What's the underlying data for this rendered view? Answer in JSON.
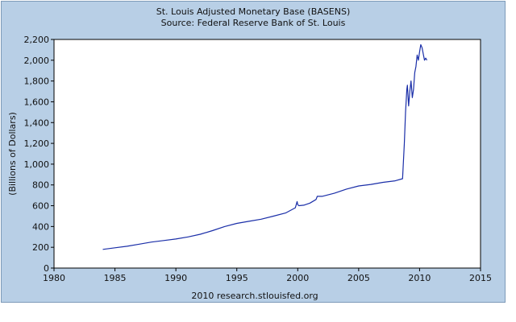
{
  "chart_data": {
    "type": "line",
    "title": "St. Louis Adjusted Monetary Base (BASENS)",
    "subtitle": "Source: Federal Reserve Bank of St. Louis",
    "xlabel": "",
    "ylabel": "(Billions of Dollars)",
    "footer": "2010 research.stlouisfed.org",
    "xlim": [
      1980,
      2015
    ],
    "ylim": [
      0,
      2200
    ],
    "x_ticks": [
      "1980",
      "1985",
      "1990",
      "1995",
      "2000",
      "2005",
      "2010",
      "2015"
    ],
    "y_ticks": [
      "0",
      "200",
      "400",
      "600",
      "800",
      "1,000",
      "1,200",
      "1,400",
      "1,600",
      "1,800",
      "2,000",
      "2,200"
    ],
    "grid": false,
    "legend": "none",
    "series": [
      {
        "color": "#1a2ea8",
        "x": [
          1984.0,
          1985.0,
          1986.0,
          1987.0,
          1988.0,
          1989.0,
          1990.0,
          1991.0,
          1992.0,
          1993.0,
          1994.0,
          1995.0,
          1996.0,
          1997.0,
          1998.0,
          1999.0,
          1999.8,
          1999.95,
          2000.0,
          2000.1,
          2000.5,
          2001.0,
          2001.5,
          2001.6,
          2002.0,
          2003.0,
          2004.0,
          2005.0,
          2006.0,
          2007.0,
          2008.0,
          2008.6,
          2008.75,
          2008.85,
          2008.95,
          2009.0,
          2009.1,
          2009.2,
          2009.3,
          2009.4,
          2009.5,
          2009.6,
          2009.7,
          2009.8,
          2009.9,
          2010.0,
          2010.1,
          2010.2,
          2010.3,
          2010.4,
          2010.5,
          2010.6
        ],
        "values": [
          180,
          195,
          210,
          230,
          250,
          265,
          280,
          300,
          325,
          360,
          400,
          430,
          450,
          470,
          500,
          530,
          580,
          640,
          610,
          600,
          605,
          625,
          660,
          690,
          690,
          720,
          760,
          790,
          805,
          825,
          840,
          860,
          1200,
          1500,
          1720,
          1760,
          1560,
          1700,
          1800,
          1640,
          1720,
          1880,
          1940,
          2050,
          2000,
          2080,
          2150,
          2120,
          2060,
          2000,
          2020,
          2000
        ]
      }
    ]
  }
}
